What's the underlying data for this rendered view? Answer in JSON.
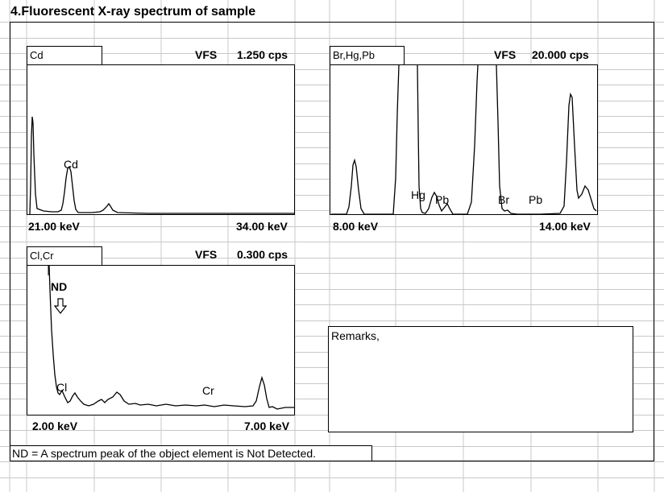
{
  "section_title": "4.Fluorescent X-ray spectrum of sample",
  "spectra": {
    "cd": {
      "element_tab": "Cd",
      "vfs_label": "VFS",
      "vfs_value": "1.250 cps",
      "x_min_label": "21.00 keV",
      "x_max_label": "34.00 keV",
      "peak_labels": [
        "Cd"
      ]
    },
    "br_hg_pb": {
      "element_tab": "Br,Hg,Pb",
      "vfs_label": "VFS",
      "vfs_value": "20.000 cps",
      "x_min_label": "8.00 keV",
      "x_max_label": "14.00 keV",
      "peak_labels": [
        "Hg",
        "Pb",
        "Br",
        "Pb"
      ]
    },
    "cl_cr": {
      "element_tab": "Cl,Cr",
      "vfs_label": "VFS",
      "vfs_value": "0.300 cps",
      "x_min_label": "2.00 keV",
      "x_max_label": "7.00 keV",
      "peak_labels": [
        "Cl",
        "Cr"
      ],
      "nd_marker": "ND",
      "nd_marker_icon": "down-arrow-icon"
    }
  },
  "remarks_label": "Remarks,",
  "footnote": "ND = A spectrum peak of the object element is Not Detected.",
  "colors": {
    "gridline": "#c8c8c8",
    "line": "#000000",
    "background": "#ffffff"
  }
}
